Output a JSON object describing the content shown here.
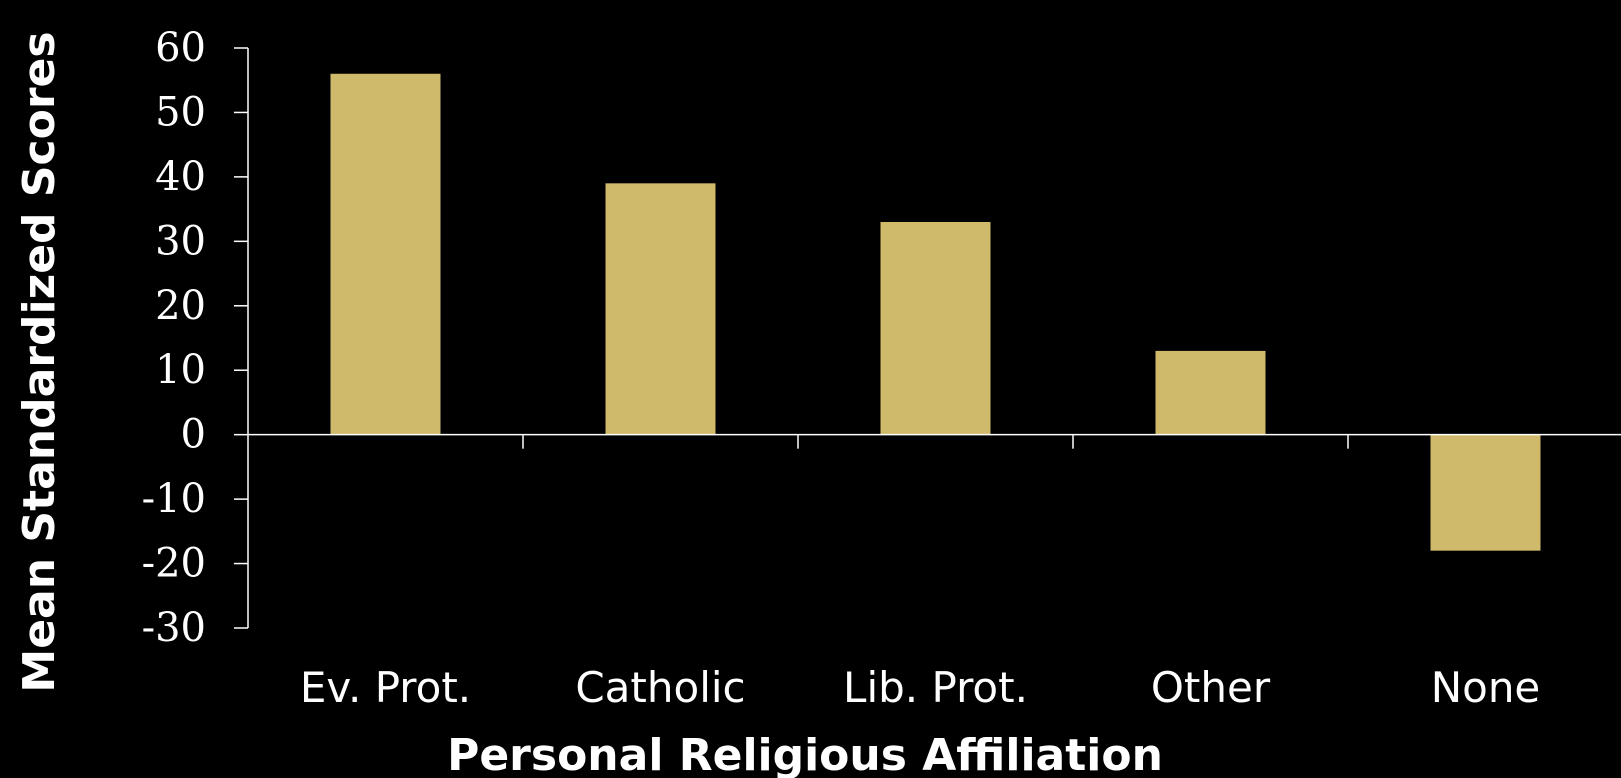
{
  "chart_data": {
    "type": "bar",
    "categories": [
      "Ev. Prot.",
      "Catholic",
      "Lib. Prot.",
      "Other",
      "None"
    ],
    "values": [
      56,
      39,
      33,
      13,
      -18
    ],
    "title": "",
    "xlabel": "Personal Religious Affiliation",
    "ylabel": "Mean Standardized Scores",
    "ylim": [
      -30,
      60
    ],
    "yticks": [
      "60",
      "50",
      "40",
      "30",
      "20",
      "10",
      "0",
      "-10",
      "-20",
      "-30"
    ],
    "grid": false,
    "legend": "none",
    "colors": {
      "background": "#000000",
      "bar": "#cfb96a",
      "axis": "#ffffff",
      "text": "#ffffff"
    }
  }
}
